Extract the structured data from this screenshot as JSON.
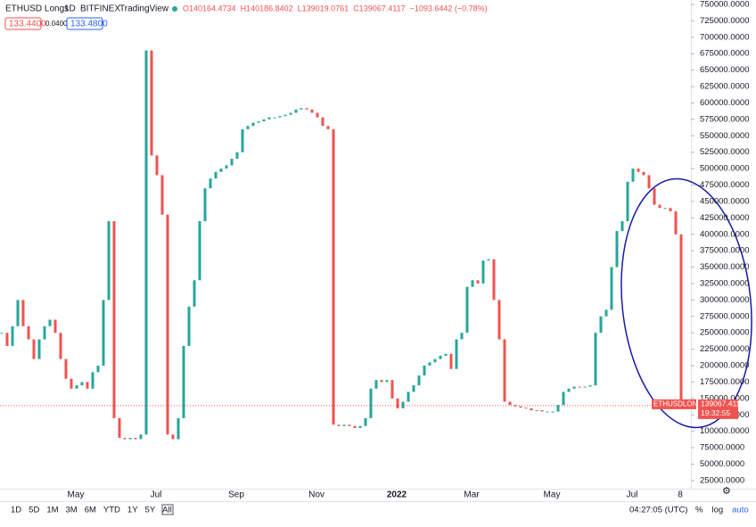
{
  "chart_data": {
    "type": "candlestick",
    "title": "ETHUSD Longs",
    "interval": "1D",
    "exchange": "BITFINEX",
    "source": "TradingView",
    "ohlc": [
      "O140164.4734",
      "H140186.8402",
      "L139019.0761",
      "C139067.4117",
      "−1093.6442 (−0.78%)"
    ],
    "quote_boxes": [
      "133.4400",
      "0.0400",
      "133.4800"
    ],
    "price_tag": {
      "symbol": "ETHUSDLONGS",
      "countdown": "19:32:55"
    },
    "up_color": "#26a69a",
    "down_color": "#ef5350",
    "categories": [
      null,
      null,
      null,
      null,
      null,
      null,
      null,
      null,
      null,
      null,
      null,
      null,
      null,
      null,
      "May",
      null,
      null,
      null,
      null,
      null,
      null,
      null,
      null,
      null,
      null,
      null,
      null,
      null,
      null,
      "Jul",
      null,
      null,
      null,
      null,
      null,
      null,
      null,
      null,
      null,
      null,
      null,
      null,
      null,
      null,
      "Sep",
      null,
      null,
      null,
      null,
      null,
      null,
      null,
      null,
      null,
      null,
      null,
      null,
      null,
      null,
      "Nov",
      null,
      null,
      null,
      null,
      null,
      null,
      null,
      null,
      null,
      null,
      null,
      null,
      null,
      null,
      "2022",
      null,
      null,
      null,
      null,
      null,
      null,
      null,
      null,
      null,
      null,
      null,
      null,
      null,
      "Mar",
      null,
      null,
      null,
      null,
      null,
      null,
      null,
      null,
      null,
      null,
      null,
      null,
      null,
      null,
      "May",
      null,
      null,
      null,
      null,
      null,
      null,
      null,
      null,
      null,
      null,
      null,
      null,
      null,
      null,
      "Jul",
      null,
      null,
      null,
      null,
      null,
      null,
      null,
      null,
      "8"
    ],
    "series": [
      {
        "values": [
          250000,
          230000,
          260000,
          300000,
          260000,
          240000,
          210000,
          240000,
          260000,
          270000,
          250000,
          210000,
          180000,
          165000,
          170000,
          175000,
          165000,
          190000,
          200000,
          300000,
          420000,
          120000,
          90000,
          88000,
          90000,
          88000,
          95000,
          680000,
          520000,
          490000,
          430000,
          95000,
          88000,
          120000,
          230000,
          290000,
          330000,
          420000,
          470000,
          485000,
          495000,
          500000,
          505000,
          515000,
          525000,
          560000,
          565000,
          570000,
          572000,
          575000,
          578000,
          578000,
          580000,
          582000,
          585000,
          590000,
          592000,
          590000,
          585000,
          578000,
          565000,
          560000,
          110000,
          108000,
          110000,
          108000,
          105000,
          108000,
          120000,
          165000,
          178000,
          175000,
          178000,
          150000,
          135000,
          145000,
          160000,
          170000,
          185000,
          200000,
          205000,
          210000,
          215000,
          218000,
          195000,
          240000,
          250000,
          320000,
          330000,
          325000,
          360000,
          362000,
          300000,
          240000,
          145000,
          140000,
          138000,
          136000,
          135000,
          132000,
          132000,
          130000,
          130000,
          130000,
          140000,
          160000,
          165000,
          168000,
          167000,
          168000,
          170000,
          250000,
          275000,
          285000,
          350000,
          405000,
          420000,
          480000,
          500000,
          495000,
          490000,
          470000,
          445000,
          440000,
          440000,
          435000,
          400000,
          139067.4117
        ]
      }
    ],
    "ylim": [
      12630,
      756790
    ],
    "yticks": [
      {
        "value": 750000,
        "label": "750000.0000"
      },
      {
        "value": 725000,
        "label": "725000.0000"
      },
      {
        "value": 700000,
        "label": "700000.0000"
      },
      {
        "value": 675000,
        "label": "675000.0000"
      },
      {
        "value": 650000,
        "label": "650000.0000"
      },
      {
        "value": 625000,
        "label": "625000.0000"
      },
      {
        "value": 600000,
        "label": "600000.0000"
      },
      {
        "value": 575000,
        "label": "575000.0000"
      },
      {
        "value": 550000,
        "label": "550000.0000"
      },
      {
        "value": 525000,
        "label": "525000.0000"
      },
      {
        "value": 500000,
        "label": "500000.0000"
      },
      {
        "value": 475000,
        "label": "475000.0000"
      },
      {
        "value": 450000,
        "label": "450000.0000"
      },
      {
        "value": 425000,
        "label": "425000.0000"
      },
      {
        "value": 400000,
        "label": "400000.0000"
      },
      {
        "value": 375000,
        "label": "375000.0000"
      },
      {
        "value": 350000,
        "label": "350000.0000"
      },
      {
        "value": 325000,
        "label": "325000.0000"
      },
      {
        "value": 300000,
        "label": "300000.0000"
      },
      {
        "value": 275000,
        "label": "275000.0000"
      },
      {
        "value": 250000,
        "label": "250000.0000"
      },
      {
        "value": 225000,
        "label": "225000.0000"
      },
      {
        "value": 200000,
        "label": "200000.0000"
      },
      {
        "value": 175000,
        "label": "175000.0000"
      },
      {
        "value": 150000,
        "label": "150000.0000"
      },
      {
        "value": 125000,
        "label": "125000.0000"
      },
      {
        "value": 100000,
        "label": "100000.0000"
      },
      {
        "value": 75000,
        "label": "75000.0000"
      },
      {
        "value": 50000,
        "label": "50000.0000"
      },
      {
        "value": 25000,
        "label": "25000.0000"
      }
    ],
    "range_buttons": [
      "1D",
      "5D",
      "1M",
      "3M",
      "6M",
      "YTD",
      "1Y",
      "5Y",
      "All"
    ],
    "clock": "04:27:05 (UTC)",
    "scale_buttons": [
      "%",
      "log",
      "auto"
    ]
  }
}
